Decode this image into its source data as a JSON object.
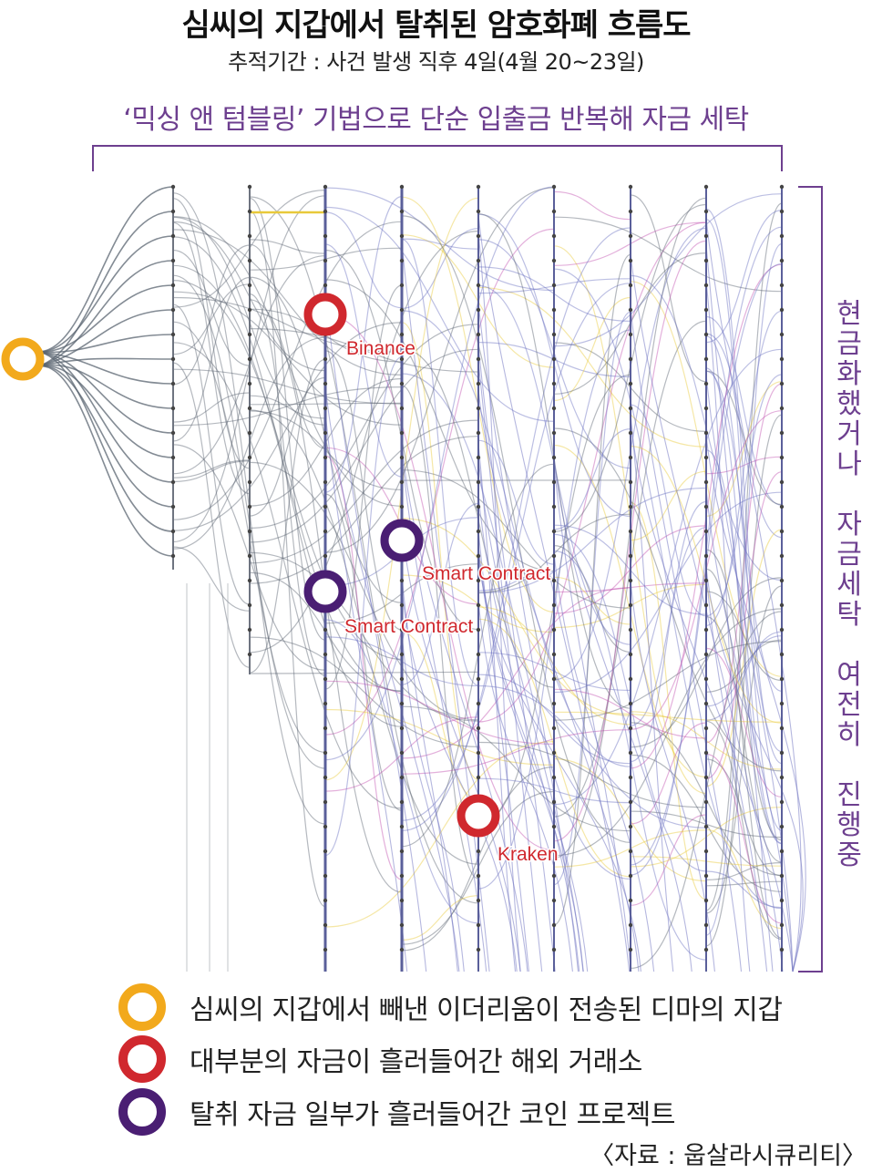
{
  "title": "심씨의 지갑에서 탈취된 암호화폐 흐름도",
  "subtitle": "추적기간 : 사건 발생 직후 4일(4월 20~23일)",
  "mixing_label": "‘믹싱 앤 텀블링’ 기법으로 단순 입출금 반복해 자금 세탁",
  "right_label": "현\n금\n화\n했\n거\n나\n \n자\n금\n세\n탁\n \n여\n전\n히\n \n진\n행\n중",
  "nodes": {
    "binance": "Binance",
    "smart_contract_1": "Smart Contract",
    "smart_contract_2": "Smart Contract",
    "kraken": "Kraken"
  },
  "legend": [
    {
      "text": "심씨의 지갑에서 빼낸 이더리움이 전송된 디마의 지갑",
      "color": "#f2a91c"
    },
    {
      "text": "대부분의 자금이 흘러들어간 해외 거래소",
      "color": "#d0282e"
    },
    {
      "text": "탈취 자금 일부가 흘러들어간 코인 프로젝트",
      "color": "#4a1e73"
    }
  ],
  "source": "〈자료 : 웁살라시큐리티〉",
  "colors": {
    "purple_label": "#6d3f8f",
    "exchange_red": "#d0282e",
    "wallet_yellow": "#f2a91c",
    "project_purple": "#4a1e73",
    "flow_gray": "#5a6470",
    "flow_blue": "#6b70c0",
    "flow_pink": "#c04fb0",
    "flow_yellow": "#e8c93a"
  }
}
